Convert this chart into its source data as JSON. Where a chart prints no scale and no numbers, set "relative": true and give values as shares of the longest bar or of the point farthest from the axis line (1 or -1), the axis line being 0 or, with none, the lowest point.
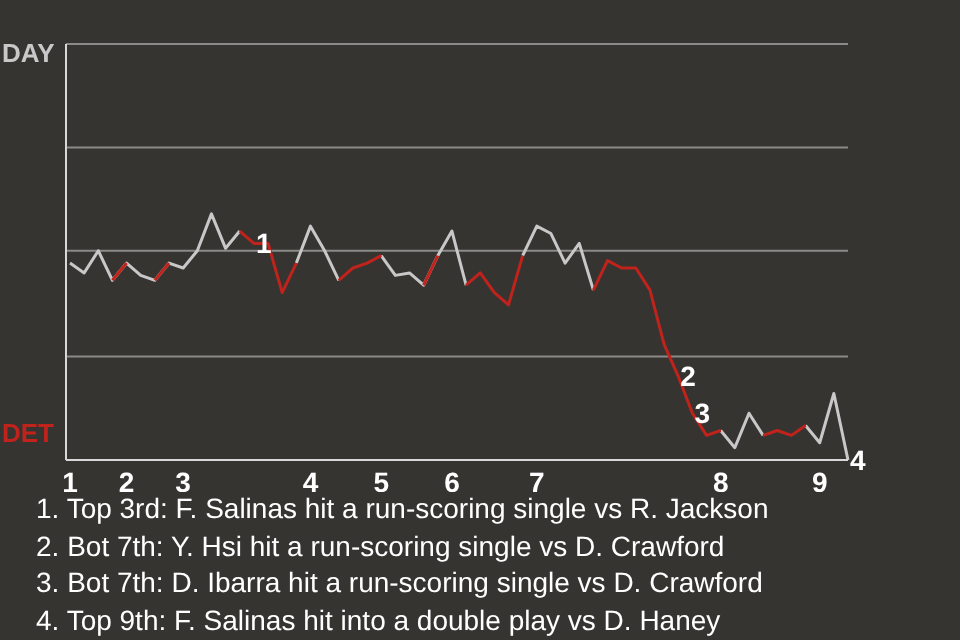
{
  "chart_data": {
    "type": "line",
    "relative": true,
    "categories": [
      "1",
      null,
      null,
      null,
      "2",
      null,
      null,
      null,
      "3",
      null,
      null,
      null,
      null,
      null,
      null,
      null,
      null,
      "4",
      null,
      null,
      null,
      null,
      "5",
      null,
      null,
      null,
      null,
      "6",
      null,
      null,
      null,
      null,
      null,
      "7",
      null,
      null,
      null,
      null,
      null,
      null,
      null,
      null,
      null,
      null,
      null,
      null,
      "8",
      null,
      null,
      null,
      null,
      null,
      null,
      "9",
      null,
      null
    ],
    "series": [
      {
        "color": "#c8c8c8",
        "values": [
          0.8,
          0.76,
          0.85,
          0.73,
          0.8,
          0.75,
          0.73,
          0.8,
          0.78,
          0.85,
          1,
          0.86,
          0.93,
          null,
          null,
          null,
          0.8,
          0.95,
          0.85,
          0.73,
          null,
          null,
          0.83,
          0.75,
          0.76,
          0.71,
          0.83,
          0.93,
          0.71,
          null,
          null,
          null,
          0.83,
          0.95,
          0.92,
          0.8,
          0.88,
          0.69,
          null,
          null,
          null,
          null,
          null,
          null,
          null,
          null,
          0.12,
          0.05,
          0.19,
          0.1,
          null,
          null,
          0.14,
          0.07,
          0.27,
          0
        ]
      },
      {
        "color": "#c0221c",
        "values": [
          null,
          null,
          null,
          0.73,
          0.8,
          null,
          0.73,
          0.8,
          null,
          null,
          null,
          null,
          0.93,
          0.88,
          0.88,
          0.68,
          0.8,
          null,
          null,
          0.73,
          0.78,
          0.8,
          0.83,
          null,
          null,
          0.71,
          0.83,
          null,
          0.71,
          0.76,
          0.68,
          0.63,
          0.83,
          null,
          null,
          null,
          null,
          0.69,
          0.81,
          0.78,
          0.78,
          0.69,
          0.47,
          0.34,
          0.19,
          0.1,
          0.12,
          null,
          null,
          0.1,
          0.12,
          0.1,
          0.14,
          null,
          null,
          null
        ]
      }
    ],
    "ref_lines": [
      {
        "axis": "y",
        "value": 0.42,
        "color": "#8a8a88"
      },
      {
        "axis": "y",
        "value": 0.85,
        "color": "#8a8a88"
      },
      {
        "axis": "y",
        "value": 1.27,
        "color": "#8a8a88"
      },
      {
        "axis": "y",
        "value": 1.69,
        "color": "#8a8a88"
      }
    ],
    "annotations": [
      "DAY",
      "DET",
      {
        "text": "1",
        "y": 0.88
      },
      {
        "text": "2",
        "y": 0.34
      },
      {
        "text": "3",
        "y": 0.19
      },
      {
        "text": "4",
        "y": 0
      },
      "1. Top 3rd: F. Salinas hit a run-scoring single vs R. Jackson",
      "2. Bot 7th: Y. Hsi hit a run-scoring single vs D. Crawford",
      "3. Bot 7th: D. Ibarra hit a run-scoring single vs D. Crawford",
      "4. Top 9th: F. Salinas hit into a double play vs D. Haney"
    ],
    "legend": false,
    "marker": "none"
  }
}
